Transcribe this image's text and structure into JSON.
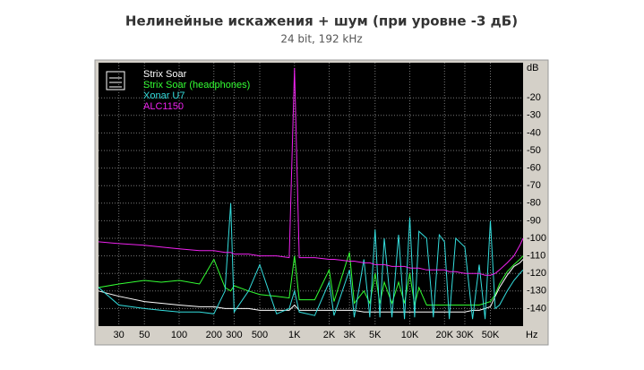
{
  "chart_data": {
    "type": "line",
    "title": "Нелинейные искажения + шум (при уровне -3 дБ)",
    "subtitle": "24 bit, 192 kHz",
    "x_unit": "Hz",
    "y_unit": "dB",
    "xscale": "log",
    "grid": true,
    "legend": "top-left",
    "xlim": [
      20,
      96000
    ],
    "ylim": [
      -150,
      0
    ],
    "xticks": [
      30,
      50,
      100,
      200,
      300,
      500,
      {
        "value": 1000,
        "label": "1K"
      },
      {
        "value": 2000,
        "label": "2K"
      },
      {
        "value": 3000,
        "label": "3K"
      },
      {
        "value": 5000,
        "label": "5K"
      },
      {
        "value": 10000,
        "label": "10K"
      },
      {
        "value": 20000,
        "label": "20K"
      },
      {
        "value": 30000,
        "label": "30K"
      },
      {
        "value": 50000,
        "label": "50K"
      }
    ],
    "yticks": [
      -20,
      -30,
      -40,
      -50,
      -60,
      -70,
      -80,
      -90,
      -100,
      -110,
      -120,
      -130,
      -140
    ],
    "x": [
      20,
      30,
      50,
      70,
      100,
      150,
      200,
      250,
      280,
      300,
      400,
      500,
      700,
      900,
      1000,
      1100,
      1500,
      2000,
      2200,
      3000,
      3300,
      4000,
      4500,
      5000,
      5500,
      6000,
      7000,
      8000,
      9000,
      10000,
      11000,
      12000,
      14000,
      16000,
      18000,
      20000,
      22000,
      25000,
      30000,
      35000,
      40000,
      45000,
      50000,
      55000,
      60000,
      70000,
      80000,
      90000,
      96000
    ],
    "series": [
      {
        "name": "Strix Soar",
        "color": "#ffffff",
        "values": [
          -130,
          -133,
          -136,
          -137,
          -138,
          -139,
          -139,
          -140,
          -140,
          -140,
          -140,
          -141,
          -141,
          -141,
          -138,
          -141,
          -141,
          -141,
          -141,
          -141,
          -141,
          -142,
          -142,
          -142,
          -142,
          -142,
          -142,
          -142,
          -142,
          -142,
          -142,
          -142,
          -142,
          -142,
          -142,
          -142,
          -142,
          -142,
          -142,
          -141,
          -141,
          -140,
          -139,
          -133,
          -128,
          -121,
          -116,
          -114,
          -112
        ]
      },
      {
        "name": "Strix Soar (headphones)",
        "color": "#33ff33",
        "values": [
          -128,
          -126,
          -124,
          -125,
          -124,
          -126,
          -112,
          -128,
          -130,
          -127,
          -130,
          -132,
          -133,
          -134,
          -110,
          -135,
          -135,
          -118,
          -136,
          -108,
          -137,
          -130,
          -137,
          -120,
          -137,
          -125,
          -137,
          -125,
          -137,
          -120,
          -138,
          -128,
          -138,
          -138,
          -138,
          -138,
          -138,
          -138,
          -138,
          -138,
          -138,
          -137,
          -136,
          -132,
          -126,
          -119,
          -115,
          -112,
          -110
        ]
      },
      {
        "name": "Xonar U7",
        "color": "#33dddd",
        "values": [
          -128,
          -138,
          -140,
          -141,
          -142,
          -142,
          -143,
          -130,
          -80,
          -142,
          -130,
          -115,
          -143,
          -140,
          -130,
          -142,
          -144,
          -125,
          -144,
          -118,
          -145,
          -112,
          -145,
          -95,
          -145,
          -100,
          -145,
          -98,
          -146,
          -88,
          -145,
          -96,
          -100,
          -145,
          -98,
          -102,
          -146,
          -100,
          -105,
          -146,
          -115,
          -146,
          -90,
          -140,
          -138,
          -130,
          -124,
          -120,
          -118
        ]
      },
      {
        "name": "ALC1150",
        "color": "#ee22ee",
        "values": [
          -102,
          -103,
          -104,
          -105,
          -106,
          -107,
          -107,
          -108,
          -108,
          -109,
          -109,
          -110,
          -110,
          -111,
          -3,
          -111,
          -111,
          -112,
          -112,
          -113,
          -113,
          -114,
          -114,
          -115,
          -115,
          -115,
          -116,
          -116,
          -116,
          -117,
          -117,
          -117,
          -118,
          -118,
          -118,
          -118,
          -119,
          -119,
          -120,
          -120,
          -120,
          -121,
          -121,
          -120,
          -118,
          -114,
          -110,
          -104,
          -100
        ]
      }
    ]
  }
}
